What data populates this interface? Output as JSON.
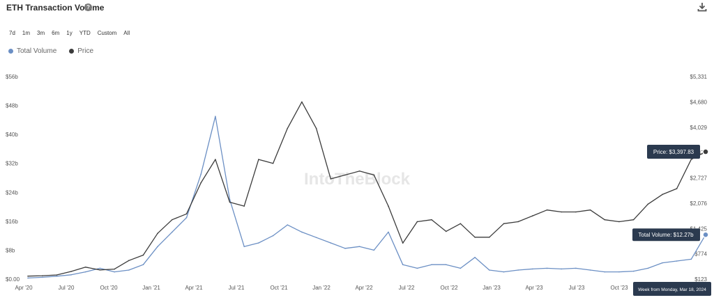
{
  "header": {
    "title": "ETH Transaction Volume",
    "help_icon": "question-circle-icon",
    "download_icon": "download-icon"
  },
  "ranges": [
    "7d",
    "1m",
    "3m",
    "6m",
    "1y",
    "YTD",
    "Custom",
    "All"
  ],
  "legend": [
    {
      "label": "Total Volume",
      "color": "#6b8fc4"
    },
    {
      "label": "Price",
      "color": "#3b3b3b"
    }
  ],
  "watermark": "IntoTheBlock",
  "chart_data": {
    "type": "line",
    "x": [
      "2020-04",
      "2020-05",
      "2020-06",
      "2020-07",
      "2020-08",
      "2020-09",
      "2020-10",
      "2020-11",
      "2020-12",
      "2021-01",
      "2021-02",
      "2021-03",
      "2021-04",
      "2021-05",
      "2021-06",
      "2021-07",
      "2021-08",
      "2021-09",
      "2021-10",
      "2021-11",
      "2021-12",
      "2022-01",
      "2022-02",
      "2022-03",
      "2022-04",
      "2022-05",
      "2022-06",
      "2022-07",
      "2022-08",
      "2022-09",
      "2022-10",
      "2022-11",
      "2022-12",
      "2023-01",
      "2023-02",
      "2023-03",
      "2023-04",
      "2023-05",
      "2023-06",
      "2023-07",
      "2023-08",
      "2023-09",
      "2023-10",
      "2023-11",
      "2023-12",
      "2024-01",
      "2024-02",
      "2024-03"
    ],
    "series": [
      {
        "name": "Total Volume",
        "axis": "left",
        "color": "#6b8fc4",
        "values": [
          0.3,
          0.5,
          0.8,
          1.2,
          2.0,
          3.0,
          2.0,
          2.5,
          4.0,
          9.0,
          13.0,
          17.0,
          29.0,
          45.0,
          22.0,
          9.0,
          10.0,
          12.0,
          15.0,
          13.0,
          11.5,
          10.0,
          8.5,
          9.0,
          8.0,
          13.0,
          4.0,
          3.0,
          4.0,
          4.0,
          3.0,
          6.0,
          2.5,
          2.0,
          2.5,
          2.8,
          3.0,
          2.8,
          3.0,
          2.5,
          2.0,
          2.0,
          2.2,
          3.0,
          4.5,
          5.0,
          5.5,
          12.27
        ]
      },
      {
        "name": "Price",
        "axis": "right",
        "color": "#3b3b3b",
        "values": [
          200,
          210,
          230,
          320,
          430,
          360,
          380,
          600,
          740,
          1300,
          1650,
          1800,
          2600,
          3200,
          2100,
          2000,
          3200,
          3100,
          4000,
          4680,
          4000,
          2700,
          2800,
          2900,
          2800,
          2000,
          1050,
          1600,
          1650,
          1350,
          1550,
          1200,
          1200,
          1550,
          1600,
          1750,
          1900,
          1850,
          1850,
          1900,
          1650,
          1600,
          1650,
          2050,
          2300,
          2450,
          3200,
          3397.83
        ]
      }
    ],
    "xticks": [
      "Apr '20",
      "Jul '20",
      "Oct '20",
      "Jan '21",
      "Apr '21",
      "Jul '21",
      "Oct '21",
      "Jan '22",
      "Apr '22",
      "Jul '22",
      "Oct '22",
      "Jan '23",
      "Apr '23",
      "Jul '23",
      "Oct '23"
    ],
    "yleft_ticks": [
      "$0.00",
      "$8b",
      "$16b",
      "$24b",
      "$32b",
      "$40b",
      "$48b",
      "$56b"
    ],
    "yleft_range": [
      0,
      56
    ],
    "yright_ticks": [
      "$123",
      "$774",
      "$1,425",
      "$2,076",
      "$2,727",
      "$3,378",
      "$4,029",
      "$4,680",
      "$5,331"
    ],
    "yright_range": [
      123,
      5331
    ],
    "tooltips": {
      "price": "Price: $3,397.83",
      "volume": "Total Volume: $12.27b",
      "date": "Week from Monday, Mar 18, 2024"
    }
  }
}
